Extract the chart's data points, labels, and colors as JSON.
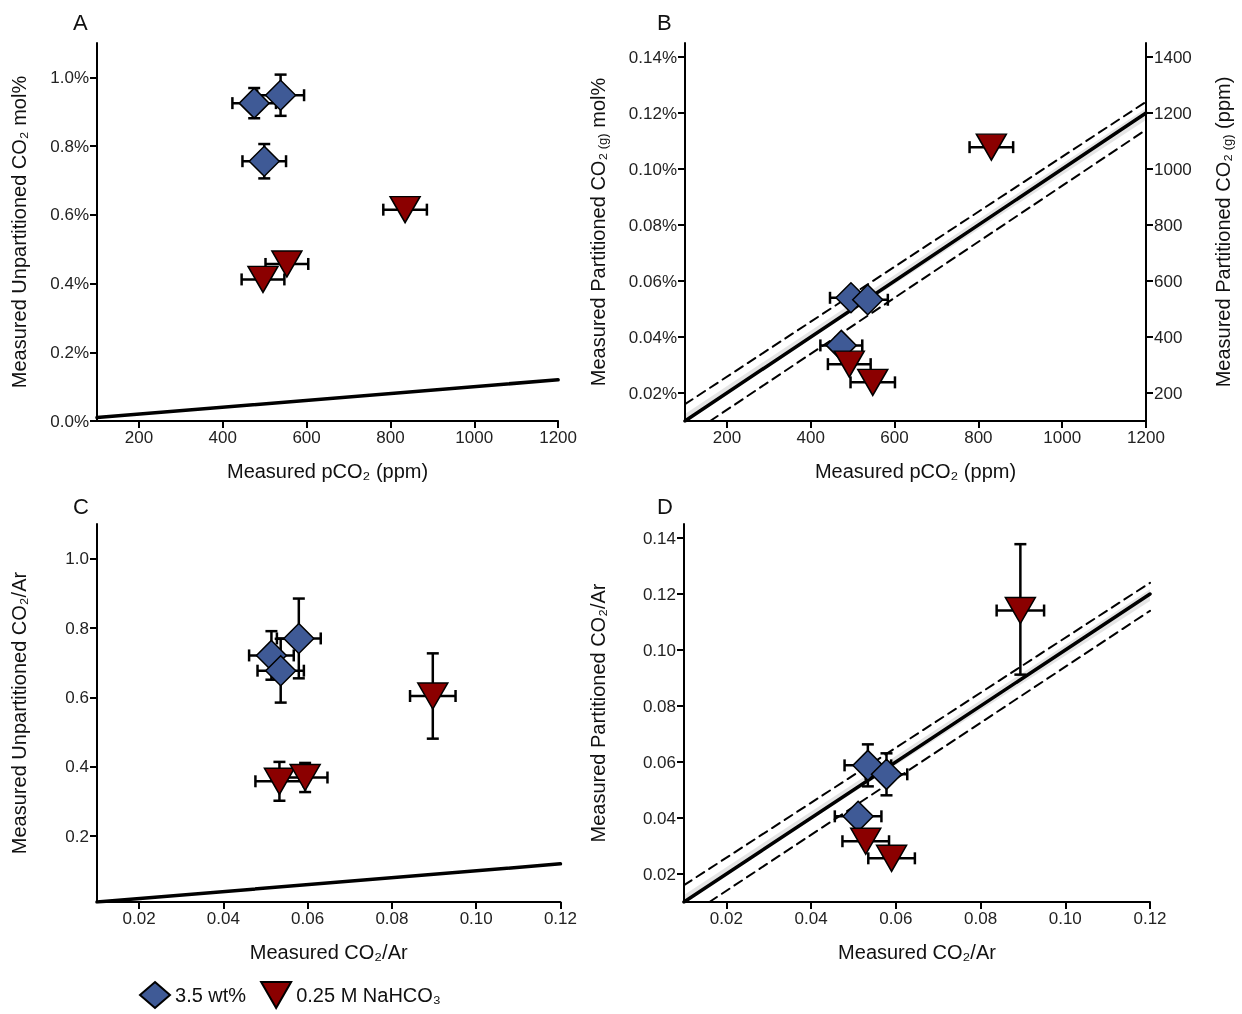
{
  "chart_data": [
    {
      "type": "scatter",
      "title": "A",
      "xlabel": "Measured pCO₂ (ppm)",
      "ylabel": "Measured Unpartitioned CO₂ mol%",
      "xlim": [
        100,
        1200
      ],
      "xticks": [
        200,
        400,
        600,
        800,
        1000,
        1200
      ],
      "ylim": [
        0,
        1.1
      ],
      "yticks": [
        {
          "value": 0,
          "label": "0.0%"
        },
        {
          "value": 0.2,
          "label": "0.2%"
        },
        {
          "value": 0.4,
          "label": "0.4%"
        },
        {
          "value": 0.6,
          "label": "0.6%"
        },
        {
          "value": 0.8,
          "label": "0.8%"
        },
        {
          "value": 1,
          "label": "1.0%"
        }
      ],
      "series": [
        {
          "color": "#3f5a96",
          "marker": "diamond",
          "x": [
            475,
            538,
            499
          ],
          "values": [
            0.925,
            0.948,
            0.756
          ],
          "errors": [
            0.044,
            0.06,
            0.05
          ],
          "xerrors": [
            52,
            56,
            52
          ]
        },
        {
          "color": "#8b0000",
          "marker": "triangle",
          "x": [
            835,
            553,
            496
          ],
          "values": [
            0.615,
            0.457,
            0.412
          ],
          "xerrors": [
            52,
            51,
            51
          ]
        },
        {
          "type": "line",
          "color": "#000000",
          "x": [
            100,
            1200
          ],
          "values": [
            0.01,
            0.12
          ]
        }
      ]
    },
    {
      "type": "scatter",
      "title": "B",
      "xlabel": "Measured pCO₂ (ppm)",
      "ylabel": "Measured Partitioned CO₂$_{ (g)}$ mol%",
      "y2label": "Measured Partitioned CO₂$_{ (g)}$ (ppm)",
      "xlim": [
        100,
        1200
      ],
      "xticks": [
        200,
        400,
        600,
        800,
        1000,
        1200
      ],
      "ylim": [
        0.01,
        0.145
      ],
      "yticks": [
        {
          "value": 0.02,
          "label": "0.02%"
        },
        {
          "value": 0.04,
          "label": "0.04%"
        },
        {
          "value": 0.06,
          "label": "0.06%"
        },
        {
          "value": 0.08,
          "label": "0.08%"
        },
        {
          "value": 0.1,
          "label": "0.10%"
        },
        {
          "value": 0.12,
          "label": "0.12%"
        },
        {
          "value": 0.14,
          "label": "0.14%"
        }
      ],
      "y2lim": [
        100,
        1450
      ],
      "y2ticks": [
        200,
        400,
        600,
        800,
        1000,
        1200,
        1400
      ],
      "series": [
        {
          "color": "#3f5a96",
          "marker": "diamond",
          "x": [
            496,
            536,
            473
          ],
          "values": [
            0.054,
            0.0533,
            0.037
          ],
          "xerrors": [
            50,
            48,
            50
          ]
        },
        {
          "color": "#8b0000",
          "marker": "triangle",
          "x": [
            831,
            492,
            548
          ],
          "values": [
            0.1078,
            0.0303,
            0.0238
          ],
          "xerrors": [
            52,
            51,
            53
          ]
        },
        {
          "type": "line",
          "color": "#000000",
          "x": [
            100,
            1200
          ],
          "values": [
            0.01,
            0.12
          ],
          "lower": [
            0.01,
            0.1175
          ],
          "upper": [
            0.0125,
            0.1217
          ]
        },
        {
          "type": "line",
          "color": "#000000",
          "line_style": "dashed",
          "x": [
            100,
            1200
          ],
          "values": [
            0.016,
            0.124
          ]
        },
        {
          "type": "line",
          "color": "#000000",
          "line_style": "dashed",
          "x": [
            160,
            1200
          ],
          "values": [
            0.01,
            0.114
          ]
        }
      ]
    },
    {
      "type": "scatter",
      "title": "C",
      "xlabel": "Measured CO₂/Ar",
      "ylabel": "Measured Unpartitioned CO₂/Ar",
      "xlim": [
        0.01,
        0.12
      ],
      "xticks": [
        0.02,
        0.04,
        0.06,
        0.08,
        {
          "value": 0.1,
          "label": "0.10"
        },
        0.12
      ],
      "ylim": [
        0.01,
        1.1
      ],
      "yticks": [
        0.2,
        0.4,
        0.6,
        0.8,
        {
          "value": 1,
          "label": "1.0"
        }
      ],
      "legend": "bottom",
      "series": [
        {
          "name": "3.5 wt%",
          "color": "#3f5a96",
          "marker": "diamond",
          "x": [
            0.0514,
            0.0579,
            0.0536
          ],
          "values": [
            0.721,
            0.77,
            0.677
          ],
          "errors": [
            0.07,
            0.115,
            0.092
          ],
          "xerrors": [
            0.0053,
            0.0052,
            0.0055
          ]
        },
        {
          "name": "0.25 M NaHCO₃",
          "color": "#8b0000",
          "marker": "triangle",
          "x": [
            0.0897,
            0.0533,
            0.0594
          ],
          "values": [
            0.604,
            0.358,
            0.369
          ],
          "errors": [
            0.123,
            0.056,
            0.042
          ],
          "xerrors": [
            0.0054,
            0.0057,
            0.0053
          ]
        },
        {
          "type": "line",
          "color": "#000000",
          "x": [
            0.01,
            0.12
          ],
          "values": [
            0.01,
            0.12
          ]
        }
      ]
    },
    {
      "type": "scatter",
      "title": "D",
      "xlabel": "Measured CO₂/Ar",
      "ylabel": "Measured Partitioned CO₂/Ar",
      "xlim": [
        0.01,
        0.12
      ],
      "xticks": [
        0.02,
        0.04,
        0.06,
        0.08,
        {
          "value": 0.1,
          "label": "0.10"
        },
        0.12
      ],
      "ylim": [
        0.01,
        0.145
      ],
      "yticks": [
        0.02,
        0.04,
        0.06,
        0.08,
        {
          "value": 0.1,
          "label": "0.10"
        },
        0.12,
        0.14
      ],
      "series": [
        {
          "color": "#3f5a96",
          "marker": "diamond",
          "x": [
            0.0534,
            0.0578,
            0.0511
          ],
          "values": [
            0.0588,
            0.0556,
            0.0406
          ],
          "errors": [
            0.0075,
            0.0075,
            null
          ],
          "xerrors": [
            0.0055,
            0.0049,
            0.0055
          ]
        },
        {
          "color": "#8b0000",
          "marker": "triangle",
          "x": [
            0.0894,
            0.0529,
            0.059
          ],
          "values": [
            0.1141,
            0.0317,
            0.0256
          ],
          "errors": [
            [
              0.0912,
              0.1378
            ],
            null,
            null
          ],
          "xerrors": [
            0.0056,
            0.0055,
            0.0055
          ]
        },
        {
          "type": "line",
          "color": "#000000",
          "x": [
            0.01,
            0.12
          ],
          "values": [
            0.01,
            0.12
          ],
          "lower": [
            0.01,
            0.1175
          ],
          "upper": [
            0.0125,
            0.1217
          ]
        },
        {
          "type": "line",
          "color": "#000000",
          "line_style": "dashed",
          "x": [
            0.01,
            0.12
          ],
          "values": [
            0.016,
            0.124
          ]
        },
        {
          "type": "line",
          "color": "#000000",
          "line_style": "dashed",
          "x": [
            0.016,
            0.12
          ],
          "values": [
            0.01,
            0.114
          ]
        }
      ]
    }
  ]
}
